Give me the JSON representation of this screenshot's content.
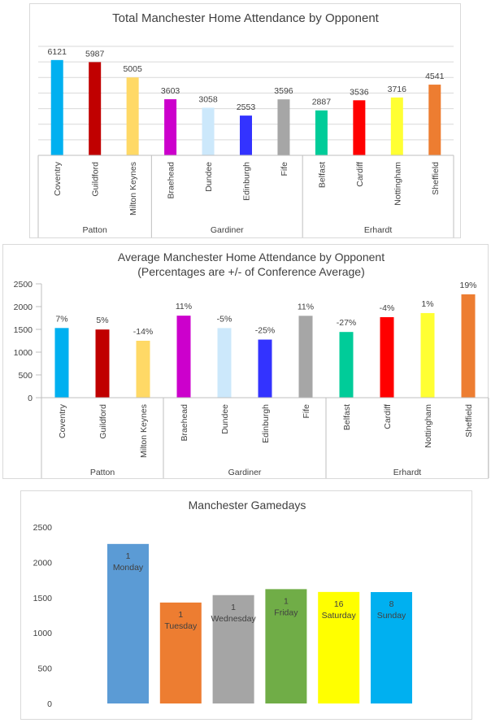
{
  "chart_data": [
    {
      "type": "bar",
      "title": "Total Manchester Home Attendance by Opponent",
      "categories": [
        "Coventry",
        "Guildford",
        "Milton Keynes",
        "Braehead",
        "Dundee",
        "Edinburgh",
        "Fife",
        "Belfast",
        "Cardiff",
        "Nottingham",
        "Sheffield"
      ],
      "values": [
        6121,
        5987,
        5005,
        3603,
        3058,
        2553,
        3596,
        2887,
        3536,
        3716,
        4541
      ],
      "data_labels": [
        "6121",
        "5987",
        "5005",
        "3603",
        "3058",
        "2553",
        "3596",
        "2887",
        "3536",
        "3716",
        "4541"
      ],
      "colors": [
        "#00b0f0",
        "#c00000",
        "#ffd966",
        "#cc00cc",
        "#cce8fb",
        "#3333ff",
        "#a6a6a6",
        "#00cc99",
        "#ff0000",
        "#ffff33",
        "#ed7d31"
      ],
      "groups": [
        {
          "name": "Patton",
          "count": 3
        },
        {
          "name": "Gardiner",
          "count": 4
        },
        {
          "name": "Erhardt",
          "count": 4
        }
      ],
      "ylim": [
        0,
        7000
      ],
      "grid": true,
      "y_axis_labels_visible": false
    },
    {
      "type": "bar",
      "title": "Average Manchester Home Attendance by Opponent",
      "subtitle": "(Percentages are +/- of Conference Average)",
      "categories": [
        "Coventry",
        "Guildford",
        "Milton Keynes",
        "Braehead",
        "Dundee",
        "Edinburgh",
        "Fife",
        "Belfast",
        "Cardiff",
        "Nottingham",
        "Sheffield"
      ],
      "values": [
        1530,
        1497,
        1250,
        1801,
        1529,
        1276,
        1798,
        1443,
        1768,
        1858,
        2270
      ],
      "data_labels": [
        "7%",
        "5%",
        "-14%",
        "11%",
        "-5%",
        "-25%",
        "11%",
        "-27%",
        "-4%",
        "1%",
        "19%"
      ],
      "colors": [
        "#00b0f0",
        "#c00000",
        "#ffd966",
        "#cc00cc",
        "#cce8fb",
        "#3333ff",
        "#a6a6a6",
        "#00cc99",
        "#ff0000",
        "#ffff33",
        "#ed7d31"
      ],
      "groups": [
        {
          "name": "Patton",
          "count": 3
        },
        {
          "name": "Gardiner",
          "count": 4
        },
        {
          "name": "Erhardt",
          "count": 4
        }
      ],
      "ylim": [
        0,
        2500
      ],
      "yticks": [
        "0",
        "500",
        "1000",
        "1500",
        "2000",
        "2500"
      ],
      "grid": false
    },
    {
      "type": "bar",
      "title": "Manchester Gamedays",
      "categories": [
        "Monday",
        "Tuesday",
        "Wednesday",
        "Friday",
        "Saturday",
        "Sunday"
      ],
      "counts": [
        "1",
        "1",
        "1",
        "1",
        "16",
        "8"
      ],
      "values": [
        2260,
        1430,
        1535,
        1620,
        1580,
        1578
      ],
      "colors": [
        "#5b9bd5",
        "#ed7d31",
        "#a5a5a5",
        "#70ad47",
        "#ffff00",
        "#00b0f0"
      ],
      "ylim": [
        0,
        2500
      ],
      "yticks": [
        "0",
        "500",
        "1000",
        "1500",
        "2000",
        "2500"
      ],
      "grid": false
    }
  ]
}
